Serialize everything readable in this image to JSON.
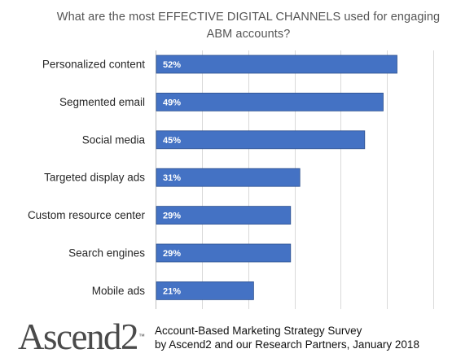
{
  "title": "What are the most EFFECTIVE DIGITAL CHANNELS used for engaging ABM accounts?",
  "logo_text": "Ascend2",
  "logo_mark": "™",
  "footer": {
    "line1": "Account-Based Marketing Strategy Survey",
    "line2": "by Ascend2 and our Research Partners, January 2018"
  },
  "colors": {
    "bar": "#4472c4",
    "bar_edge": "#2f528f",
    "label": "#ffffff"
  },
  "chart_data": {
    "type": "bar",
    "orientation": "horizontal",
    "title": "What are the most EFFECTIVE DIGITAL CHANNELS used for engaging ABM accounts?",
    "xlabel": "",
    "ylabel": "",
    "categories": [
      "Personalized content",
      "Segmented email",
      "Social media",
      "Targeted display ads",
      "Custom resource center",
      "Search engines",
      "Mobile ads"
    ],
    "values": [
      52,
      49,
      45,
      31,
      29,
      29,
      21
    ],
    "value_labels": [
      "52%",
      "49%",
      "45%",
      "31%",
      "29%",
      "29%",
      "21%"
    ],
    "xlim": [
      0,
      60
    ],
    "grid": true,
    "legend": "none"
  }
}
